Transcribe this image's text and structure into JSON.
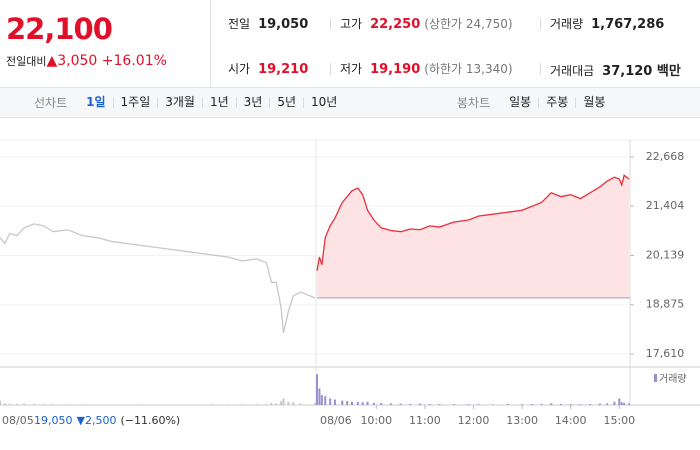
{
  "header": {
    "price": "22,100",
    "change_caption": "전일대비",
    "change": "▲3,050",
    "rate": "+16.01%",
    "color": "#e0102a",
    "stats": [
      [
        {
          "label": "전일",
          "value": "19,050"
        },
        {
          "label": "고가",
          "value": "22,250",
          "note": "(상한가 24,750)",
          "color": "#e0102a"
        },
        {
          "label": "거래량",
          "value": "1,767,286"
        }
      ],
      [
        {
          "label": "시가",
          "value": "19,210",
          "color": "#e0102a"
        },
        {
          "label": "저가",
          "value": "19,190",
          "note": "(하한가 13,340)",
          "color": "#e0102a"
        },
        {
          "label": "거래대금",
          "value": "37,120 백만"
        }
      ]
    ]
  },
  "tabs": {
    "line_label": "선차트",
    "line_items": [
      "1일",
      "1주일",
      "3개월",
      "1년",
      "3년",
      "5년",
      "10년"
    ],
    "active": 0,
    "candle_label": "봉차트",
    "candle_items": [
      "일봉",
      "주봉",
      "월봉"
    ]
  },
  "chart_data": [
    {
      "type": "line",
      "date": "08/05",
      "close_label": "19,050",
      "change_label": "▼2,500",
      "rate_label": "(−11.60%)",
      "summary_color": "#1b61d1",
      "color": "#c8c8c8",
      "xlim": [
        9,
        15.5
      ],
      "ylim": [
        17610,
        22668
      ],
      "x": [
        9.0,
        9.1,
        9.2,
        9.35,
        9.5,
        9.7,
        9.9,
        10.1,
        10.4,
        10.7,
        11.0,
        11.3,
        11.6,
        11.9,
        12.2,
        12.5,
        12.8,
        13.1,
        13.4,
        13.7,
        14.0,
        14.3,
        14.5,
        14.6,
        14.7,
        14.8,
        14.85,
        14.95,
        15.05,
        15.2,
        15.5
      ],
      "values": [
        20600,
        20450,
        20700,
        20650,
        20850,
        20950,
        20900,
        20750,
        20800,
        20650,
        20600,
        20500,
        20450,
        20400,
        20350,
        20300,
        20250,
        20200,
        20150,
        20100,
        20000,
        20050,
        19950,
        19450,
        19450,
        18800,
        18150,
        18700,
        19100,
        19200,
        19050
      ],
      "volume": [
        40000,
        15000,
        12000,
        10000,
        14000,
        12000,
        9000,
        8000,
        7000,
        8000,
        6000,
        6000,
        5000,
        7000,
        5000,
        6000,
        5000,
        6000,
        7000,
        6000,
        8000,
        7000,
        9000,
        20000,
        15000,
        35000,
        60000,
        30000,
        25000,
        15000,
        20000
      ],
      "volume_color": "#c8c8c8",
      "volume_ylim": [
        0,
        300000
      ]
    },
    {
      "type": "line",
      "date": "08/06",
      "color": "#e8303a",
      "fill": "#fde3e4",
      "baseline": 19050,
      "xlim": [
        8.78,
        15.22
      ],
      "ylim": [
        17610,
        22668
      ],
      "yticks": [
        {
          "value": 22668,
          "label": "22,668"
        },
        {
          "value": 21404,
          "label": "21,404"
        },
        {
          "value": 20139,
          "label": "20,139"
        },
        {
          "value": 18875,
          "label": "18,875"
        },
        {
          "value": 17610,
          "label": "17,610"
        }
      ],
      "xticks": [
        {
          "value": 10,
          "label": "10:00"
        },
        {
          "value": 11,
          "label": "11:00"
        },
        {
          "value": 12,
          "label": "12:00"
        },
        {
          "value": 13,
          "label": "13:00"
        },
        {
          "value": 14,
          "label": "14:00"
        },
        {
          "value": 15,
          "label": "15:00"
        }
      ],
      "x": [
        8.78,
        8.83,
        8.88,
        8.95,
        9.05,
        9.15,
        9.3,
        9.4,
        9.5,
        9.62,
        9.72,
        9.82,
        9.95,
        10.1,
        10.3,
        10.5,
        10.7,
        10.9,
        11.1,
        11.3,
        11.6,
        11.9,
        12.1,
        12.4,
        12.7,
        13.0,
        13.2,
        13.4,
        13.6,
        13.8,
        14.0,
        14.2,
        14.4,
        14.6,
        14.75,
        14.9,
        15.0,
        15.05,
        15.1,
        15.2
      ],
      "values": [
        19750,
        20100,
        19900,
        20600,
        20900,
        21100,
        21500,
        21650,
        21800,
        21870,
        21700,
        21300,
        21050,
        20850,
        20780,
        20750,
        20820,
        20800,
        20900,
        20870,
        21000,
        21050,
        21150,
        21200,
        21250,
        21300,
        21400,
        21500,
        21750,
        21650,
        21700,
        21600,
        21750,
        21900,
        22050,
        22150,
        22100,
        21950,
        22200,
        22100
      ],
      "volume": [
        280000,
        150000,
        90000,
        80000,
        60000,
        50000,
        40000,
        35000,
        30000,
        28000,
        25000,
        30000,
        20000,
        18000,
        15000,
        12000,
        10000,
        12000,
        9000,
        8000,
        8000,
        7000,
        7000,
        6000,
        8000,
        7000,
        9000,
        10000,
        15000,
        9000,
        8000,
        7000,
        9000,
        12000,
        15000,
        30000,
        60000,
        25000,
        20000,
        15000
      ],
      "volume_color": "#9b8fd0",
      "volume_ylim": [
        0,
        300000
      ],
      "volume_label": "거래량"
    }
  ]
}
